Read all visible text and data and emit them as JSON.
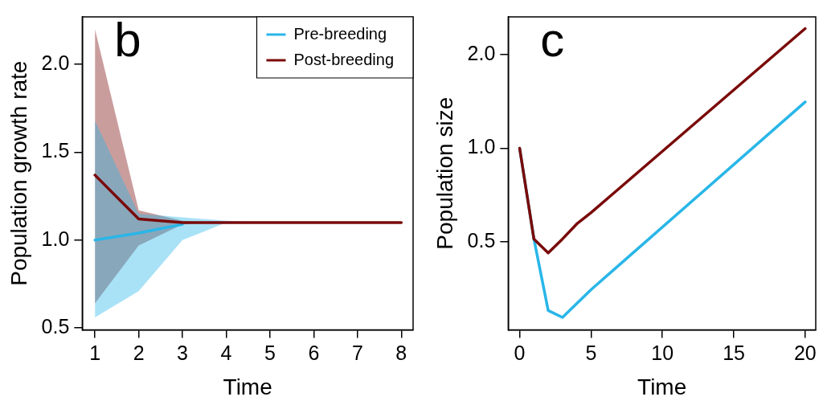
{
  "chart_data": [
    {
      "type": "line",
      "title": "b",
      "xlabel": "Time",
      "ylabel": "Population growth rate",
      "x": [
        1,
        2,
        3,
        4,
        5,
        6,
        7,
        8
      ],
      "xlim": [
        0.71,
        8.27
      ],
      "xticks": [
        1,
        2,
        3,
        4,
        5,
        6,
        7,
        8
      ],
      "ylim": [
        0.49,
        2.27
      ],
      "yticks": [
        0.5,
        {
          "value": 1.0,
          "label": "1.0"
        },
        1.5,
        {
          "value": 2.0,
          "label": "2.0"
        }
      ],
      "grid": false,
      "legend": "top right",
      "marker": "none",
      "series": [
        {
          "name": "Pre-breeding",
          "color": "#29b6e8",
          "values": [
            1.0,
            1.04,
            1.09,
            null,
            null,
            null,
            null,
            null
          ],
          "lower": [
            0.56,
            0.71,
            1.0,
            1.1,
            1.1,
            1.1,
            1.1,
            1.1
          ],
          "upper": [
            1.68,
            1.15,
            1.13,
            1.11,
            1.1,
            1.1,
            1.1,
            1.1
          ]
        },
        {
          "name": "Post-breeding",
          "color": "#7a0a0a",
          "values": [
            1.37,
            1.12,
            1.1,
            1.1,
            1.1,
            1.1,
            1.1,
            1.1
          ],
          "lower": [
            0.64,
            0.97,
            1.09,
            1.1,
            1.1,
            1.1,
            1.1,
            1.1
          ],
          "upper": [
            2.2,
            1.17,
            1.11,
            1.1,
            1.1,
            1.1,
            1.1,
            1.1
          ]
        }
      ]
    },
    {
      "type": "line",
      "title": "c",
      "xlabel": "Time",
      "ylabel": "Population size",
      "x": [
        0,
        1,
        2,
        3,
        4,
        5,
        20
      ],
      "xlim": [
        -0.8,
        20.74
      ],
      "xticks": [
        0,
        5,
        10,
        15,
        20
      ],
      "ylim": [
        0.26,
        2.65
      ],
      "yticks": [
        {
          "value": 0.5,
          "label": "0.5"
        },
        {
          "value": 1.0,
          "label": "1.0"
        },
        {
          "value": 2.0,
          "label": "2.0"
        }
      ],
      "log": "y",
      "grid": false,
      "legend": false,
      "marker": "none",
      "series": [
        {
          "color": "#29b6e8",
          "values": [
            1.0,
            0.51,
            0.3,
            0.285,
            0.316,
            0.35,
            1.41
          ]
        },
        {
          "color": "#7a0a0a",
          "values": [
            1.0,
            0.51,
            0.46,
            0.51,
            0.57,
            0.62,
            2.43
          ]
        }
      ]
    }
  ]
}
